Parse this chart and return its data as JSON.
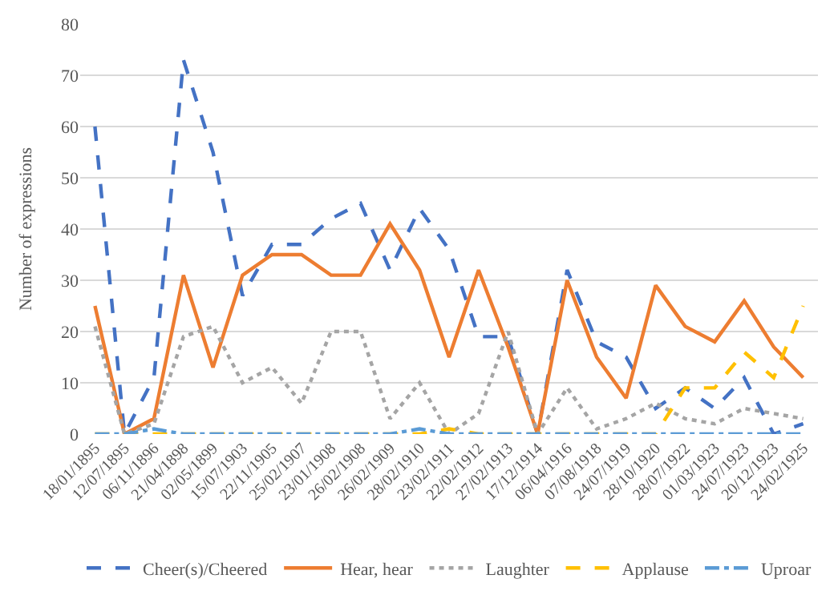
{
  "chart_data": {
    "type": "line",
    "ylabel": "Number of expressions",
    "categories": [
      "18/01/1895",
      "12/07/1895",
      "06/11/1896",
      "21/04/1898",
      "02/05/1899",
      "15/07/1903",
      "22/11/1905",
      "25/02/1907",
      "23/01/1908",
      "26/02/1908",
      "26/02/1909",
      "28/02/1910",
      "23/02/1911",
      "22/02/1912",
      "27/02/1913",
      "17/12/1914",
      "06/04/1916",
      "07/08/1918",
      "24/07/1919",
      "28/10/1920",
      "28/07/1922",
      "01/03/1923",
      "24/07/1923",
      "20/12/1923",
      "24/02/1925"
    ],
    "series": [
      {
        "name": "Cheer(s)/Cheered",
        "color": "#4472c4",
        "line_style": "dashed",
        "values": [
          60,
          0,
          11,
          73,
          55,
          27,
          37,
          37,
          42,
          45,
          32,
          44,
          36,
          19,
          19,
          0,
          32,
          18,
          15,
          5,
          9,
          5,
          11,
          0,
          2
        ]
      },
      {
        "name": "Hear, hear",
        "color": "#ed7d31",
        "line_style": "solid",
        "values": [
          25,
          0,
          3,
          31,
          13,
          31,
          35,
          35,
          31,
          31,
          41,
          32,
          15,
          32,
          17,
          0,
          30,
          15,
          7,
          29,
          21,
          18,
          26,
          17,
          11
        ]
      },
      {
        "name": "Laughter",
        "color": "#a5a5a5",
        "line_style": "dotted",
        "values": [
          21,
          0,
          2,
          19,
          21,
          10,
          13,
          6,
          20,
          20,
          3,
          10,
          0,
          4,
          20,
          0,
          9,
          1,
          3,
          6,
          3,
          2,
          5,
          4,
          3
        ]
      },
      {
        "name": "Applause",
        "color": "#ffc000",
        "line_style": "dashed",
        "values": [
          0,
          0,
          0,
          0,
          0,
          0,
          0,
          0,
          0,
          0,
          0,
          0,
          1,
          0,
          0,
          0,
          0,
          0,
          0,
          0,
          9,
          9,
          16,
          11,
          25
        ]
      },
      {
        "name": "Uproar",
        "color": "#5b9bd5",
        "line_style": "dashdot",
        "values": [
          0,
          0,
          1,
          0,
          0,
          0,
          0,
          0,
          0,
          0,
          0,
          1,
          0,
          0,
          0,
          0,
          0,
          0,
          0,
          0,
          0,
          0,
          0,
          0,
          0
        ]
      }
    ],
    "ylim": [
      0,
      80
    ],
    "yticks": [
      0,
      10,
      20,
      30,
      40,
      50,
      60,
      70,
      80
    ],
    "grid": "y",
    "legend": "bottom",
    "marker": "none"
  }
}
